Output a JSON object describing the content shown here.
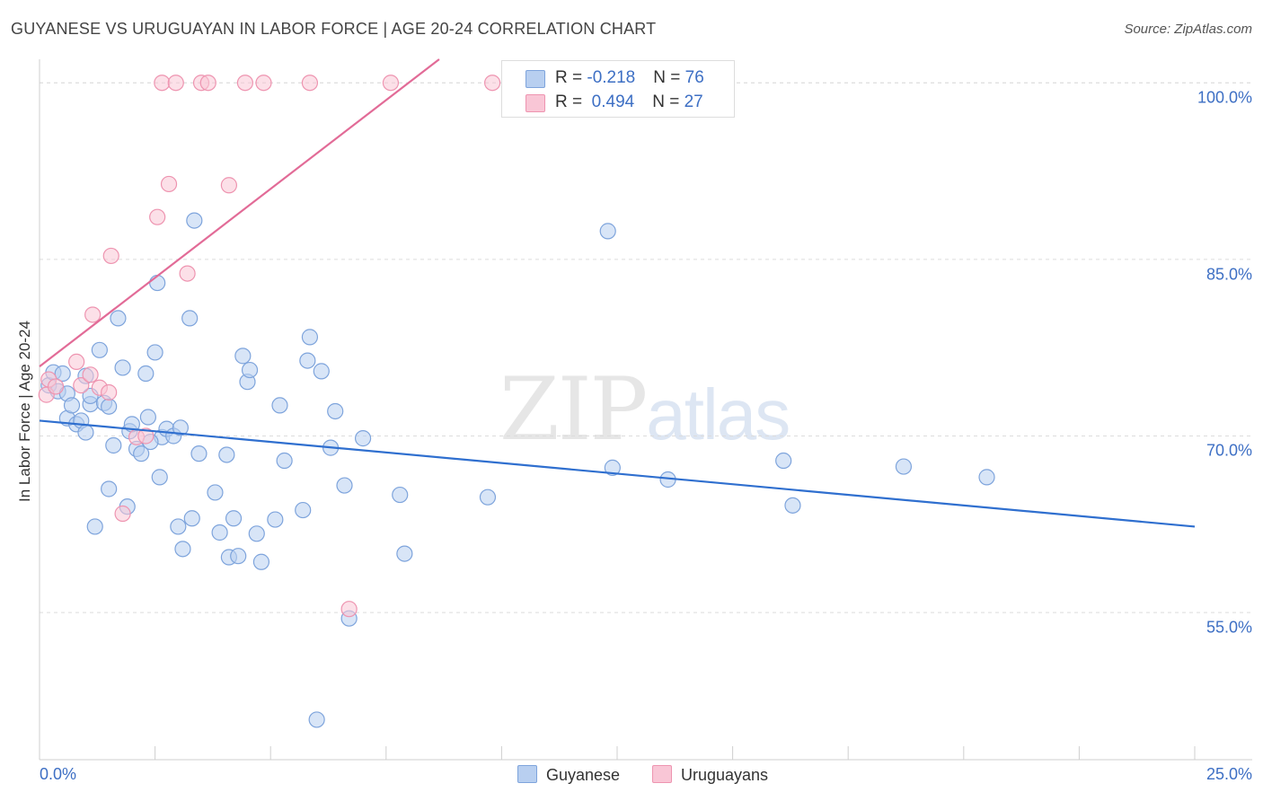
{
  "title": "GUYANESE VS URUGUAYAN IN LABOR FORCE | AGE 20-24 CORRELATION CHART",
  "source": "Source: ZipAtlas.com",
  "watermark": {
    "zip": "ZIP",
    "atlas": "atlas"
  },
  "chart_data": {
    "type": "scatter",
    "ylabel": "In Labor Force | Age 20-24",
    "xlim": [
      0,
      25
    ],
    "ylim": [
      42.5,
      102
    ],
    "y_ticks": [
      {
        "value": 55,
        "label": "55.0%"
      },
      {
        "value": 70,
        "label": "70.0%"
      },
      {
        "value": 85,
        "label": "85.0%"
      },
      {
        "value": 100,
        "label": "100.0%"
      }
    ],
    "x_tick_labels": {
      "left": "0.0%",
      "right": "25.0%"
    },
    "grid": "horizontal dashed",
    "legend_stats": [
      {
        "r_label": "R = ",
        "r": "-0.218",
        "n_label": "N = ",
        "n": "76"
      },
      {
        "r_label": "R = ",
        "r": " 0.494",
        "n_label": "N = ",
        "n": "27"
      }
    ],
    "series": [
      {
        "name": "Guyanese",
        "fill": "#b8cff0",
        "stroke": "#7ea4dc",
        "trend": {
          "x": [
            0,
            25
          ],
          "y": [
            71.3,
            62.3
          ],
          "color": "#2f6fcf"
        },
        "points": [
          [
            0.2,
            74.3
          ],
          [
            0.3,
            75.4
          ],
          [
            0.4,
            73.8
          ],
          [
            0.5,
            75.3
          ],
          [
            0.6,
            73.6
          ],
          [
            0.6,
            71.5
          ],
          [
            0.7,
            72.6
          ],
          [
            0.8,
            71.0
          ],
          [
            0.9,
            71.3
          ],
          [
            1.0,
            70.3
          ],
          [
            1.0,
            75.1
          ],
          [
            1.1,
            72.7
          ],
          [
            1.2,
            62.3
          ],
          [
            1.3,
            77.3
          ],
          [
            1.4,
            72.8
          ],
          [
            1.5,
            72.5
          ],
          [
            1.5,
            65.5
          ],
          [
            1.6,
            69.2
          ],
          [
            1.7,
            80.0
          ],
          [
            1.8,
            75.8
          ],
          [
            1.9,
            64.0
          ],
          [
            1.95,
            70.4
          ],
          [
            2.0,
            71.0
          ],
          [
            2.1,
            68.9
          ],
          [
            2.2,
            68.5
          ],
          [
            2.3,
            75.3
          ],
          [
            2.35,
            71.6
          ],
          [
            2.5,
            77.1
          ],
          [
            2.55,
            83.0
          ],
          [
            2.6,
            66.5
          ],
          [
            2.65,
            69.9
          ],
          [
            2.75,
            70.6
          ],
          [
            2.9,
            70.0
          ],
          [
            3.0,
            62.3
          ],
          [
            3.05,
            70.7
          ],
          [
            3.1,
            60.4
          ],
          [
            3.25,
            80.0
          ],
          [
            3.3,
            63.0
          ],
          [
            3.35,
            88.3
          ],
          [
            3.45,
            68.5
          ],
          [
            3.8,
            65.2
          ],
          [
            3.9,
            61.8
          ],
          [
            4.05,
            68.4
          ],
          [
            4.1,
            59.7
          ],
          [
            4.2,
            63.0
          ],
          [
            4.3,
            59.8
          ],
          [
            4.4,
            76.8
          ],
          [
            4.5,
            74.6
          ],
          [
            4.55,
            75.6
          ],
          [
            4.7,
            61.7
          ],
          [
            4.8,
            59.3
          ],
          [
            5.1,
            62.9
          ],
          [
            5.2,
            72.6
          ],
          [
            5.3,
            67.9
          ],
          [
            5.7,
            63.7
          ],
          [
            5.8,
            76.4
          ],
          [
            5.85,
            78.4
          ],
          [
            6.1,
            75.5
          ],
          [
            6.3,
            69.0
          ],
          [
            6.4,
            72.1
          ],
          [
            6.6,
            65.8
          ],
          [
            6.7,
            54.5
          ],
          [
            7.0,
            69.8
          ],
          [
            7.8,
            65.0
          ],
          [
            7.9,
            60.0
          ],
          [
            9.7,
            64.8
          ],
          [
            12.3,
            87.4
          ],
          [
            12.4,
            67.3
          ],
          [
            13.6,
            66.3
          ],
          [
            16.1,
            67.9
          ],
          [
            16.3,
            64.1
          ],
          [
            18.7,
            67.4
          ],
          [
            20.5,
            66.5
          ],
          [
            6.0,
            45.9
          ],
          [
            2.4,
            69.5
          ],
          [
            1.1,
            73.4
          ]
        ]
      },
      {
        "name": "Uruguayans",
        "fill": "#f9c6d6",
        "stroke": "#ee94b0",
        "trend": {
          "x": [
            0,
            8.65
          ],
          "y": [
            75.9,
            102
          ],
          "color": "#e26b97"
        },
        "points": [
          [
            0.15,
            73.5
          ],
          [
            0.2,
            74.8
          ],
          [
            0.35,
            74.2
          ],
          [
            0.8,
            76.3
          ],
          [
            0.9,
            74.3
          ],
          [
            1.1,
            75.2
          ],
          [
            1.15,
            80.3
          ],
          [
            1.3,
            74.1
          ],
          [
            1.5,
            73.7
          ],
          [
            1.55,
            85.3
          ],
          [
            1.8,
            63.4
          ],
          [
            2.1,
            69.9
          ],
          [
            2.3,
            70.0
          ],
          [
            2.55,
            88.6
          ],
          [
            2.8,
            91.4
          ],
          [
            3.2,
            83.8
          ],
          [
            4.1,
            91.3
          ],
          [
            2.65,
            100.0
          ],
          [
            2.95,
            100.0
          ],
          [
            3.5,
            100.0
          ],
          [
            3.65,
            100.0
          ],
          [
            4.45,
            100.0
          ],
          [
            4.85,
            100.0
          ],
          [
            5.85,
            100.0
          ],
          [
            7.6,
            100.0
          ],
          [
            9.8,
            100.0
          ],
          [
            6.7,
            55.3
          ]
        ]
      }
    ]
  }
}
